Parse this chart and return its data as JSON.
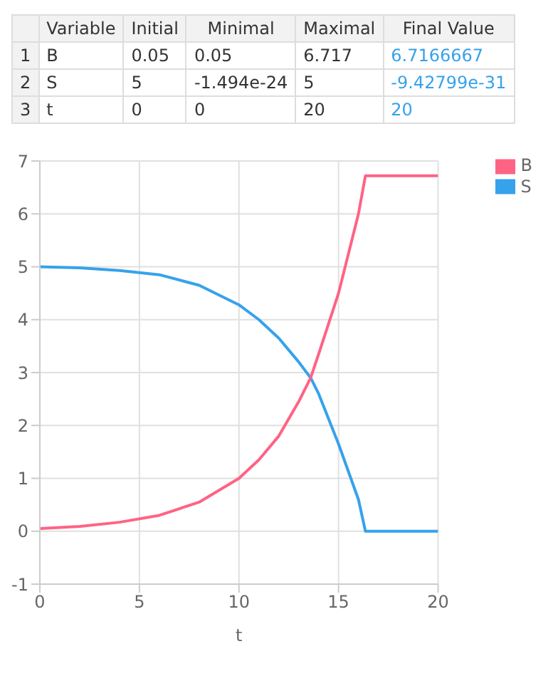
{
  "chart_data": [
    {
      "type": "other",
      "categories": [
        null,
        "Variable",
        "Initial",
        "Minimal",
        "Maximal",
        "Final Value"
      ],
      "y_categories": [
        "1",
        "2",
        "3"
      ],
      "cell_labels": [
        [
          "B",
          "0.05",
          "0.05",
          "6.717",
          "6.7166667"
        ],
        [
          "S",
          "5",
          "-1.494e-24",
          "5",
          "-9.42799e-31"
        ],
        [
          "t",
          "0",
          "0",
          "20",
          "20"
        ]
      ],
      "color": "#36a2eb"
    },
    {
      "type": "line",
      "xlabel": "t",
      "xlim": [
        0,
        20
      ],
      "xticks": [
        0,
        5,
        10,
        15,
        20
      ],
      "ylim": [
        -1,
        7
      ],
      "yticks": [
        -1,
        0,
        1,
        2,
        3,
        4,
        5,
        6,
        7
      ],
      "grid": true,
      "legend": "top right",
      "marker": "none",
      "line_style": "solid",
      "series": [
        {
          "name": "S",
          "color": "#36a2eb",
          "x": [
            0,
            2,
            4,
            6,
            8,
            10,
            11,
            12,
            13,
            13.6,
            14,
            15,
            16,
            16.35,
            20
          ],
          "values": [
            5,
            4.98,
            4.93,
            4.85,
            4.65,
            4.28,
            4.0,
            3.65,
            3.2,
            2.9,
            2.6,
            1.65,
            0.6,
            0,
            0
          ]
        },
        {
          "name": "B",
          "color": "#ff6384",
          "x": [
            0,
            2,
            4,
            6,
            8,
            10,
            11,
            12,
            13,
            13.6,
            14,
            15,
            16,
            16.35,
            20
          ],
          "values": [
            0.05,
            0.09,
            0.17,
            0.3,
            0.55,
            1.0,
            1.35,
            1.8,
            2.45,
            2.9,
            3.35,
            4.5,
            6.0,
            6.72,
            6.72
          ]
        }
      ]
    }
  ]
}
